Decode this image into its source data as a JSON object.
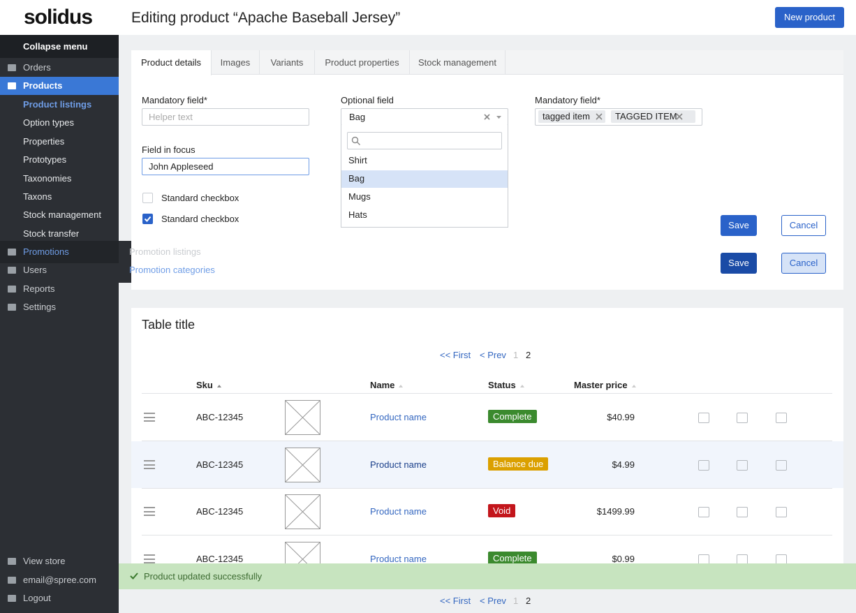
{
  "header": {
    "logo": "solidus",
    "title": "Editing product “Apache Baseball Jersey”",
    "new_button": "New product"
  },
  "sidebar": {
    "collapse": "Collapse menu",
    "menu": [
      "Orders",
      "Products",
      "Promotions",
      "Users",
      "Reports",
      "Settings"
    ],
    "submenu": [
      "Product listings",
      "Option types",
      "Properties",
      "Prototypes",
      "Taxonomies",
      "Taxons",
      "Stock management",
      "Stock transfer"
    ],
    "flyout": [
      "Promotion listings",
      "Promotion categories"
    ],
    "footer": [
      "View store",
      "email@spree.com",
      "Logout"
    ]
  },
  "tabs": [
    "Product details",
    "Images",
    "Variants",
    "Product properties",
    "Stock management"
  ],
  "form": {
    "field1": {
      "label": "Mandatory field*",
      "placeholder": "Helper text"
    },
    "field2": {
      "label": "Field in focus",
      "value": "John Appleseed"
    },
    "checkboxes": [
      "Standard checkbox",
      "Standard checkbox"
    ],
    "select": {
      "label": "Optional field",
      "value": "Bag",
      "options": [
        "Shirt",
        "Bag",
        "Mugs",
        "Hats"
      ]
    },
    "tags": {
      "label": "Mandatory field*",
      "items": [
        "tagged item",
        "TAGGED ITEM"
      ]
    },
    "save": "Save",
    "cancel": "Cancel"
  },
  "table": {
    "title": "Table title",
    "pagination": [
      "<< First",
      "< Prev",
      "1",
      "2"
    ],
    "columns": [
      "Sku",
      "Name",
      "Status",
      "Master price"
    ],
    "rows": [
      {
        "sku": "ABC-12345",
        "name": "Product name",
        "status": "Complete",
        "price": "$40.99"
      },
      {
        "sku": "ABC-12345",
        "name": "Product name",
        "status": "Balance due",
        "price": "$4.99"
      },
      {
        "sku": "ABC-12345",
        "name": "Product name",
        "status": "Void",
        "price": "$1499.99"
      },
      {
        "sku": "ABC-12345",
        "name": "Product name",
        "status": "Complete",
        "price": "$0.99"
      }
    ]
  },
  "toast": "Product updated successfully"
}
